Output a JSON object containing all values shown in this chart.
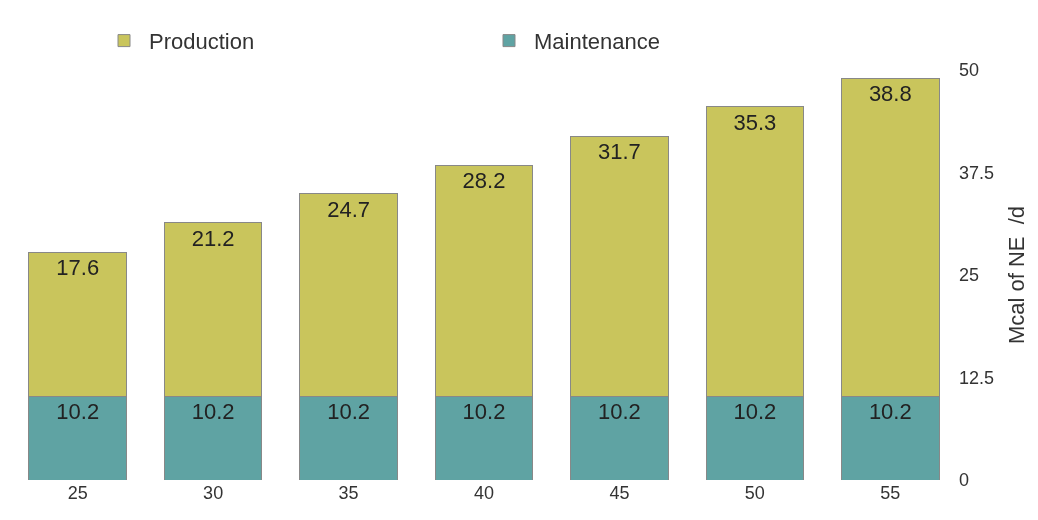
{
  "chart_data": {
    "type": "bar",
    "stacked": true,
    "categories": [
      "25",
      "30",
      "35",
      "40",
      "45",
      "50",
      "55"
    ],
    "series": [
      {
        "name": "Maintenance",
        "color": "#5fa3a3",
        "values": [
          10.2,
          10.2,
          10.2,
          10.2,
          10.2,
          10.2,
          10.2
        ]
      },
      {
        "name": "Production",
        "color": "#c9c55c",
        "values": [
          17.6,
          21.2,
          24.7,
          28.2,
          31.7,
          35.3,
          38.8
        ]
      }
    ],
    "ylabel": "Mcal of NE  /d",
    "ylim": [
      0,
      50
    ],
    "yticks": [
      0,
      12.5,
      25,
      37.5,
      50
    ],
    "grid": false,
    "legend": "top",
    "data_labels": true
  }
}
